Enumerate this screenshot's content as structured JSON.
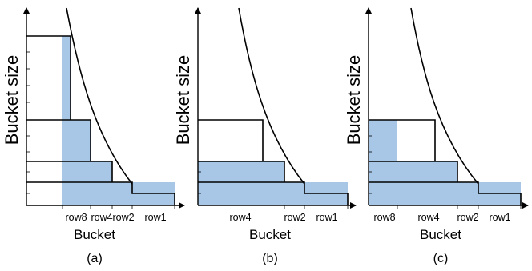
{
  "panels": [
    {
      "id": "a",
      "ylabel": "Bucket size",
      "xlabel": "Bucket",
      "caption": "(a)",
      "tick_labels": [
        "row8",
        "row4",
        "row2",
        "row1"
      ]
    },
    {
      "id": "b",
      "ylabel": "Bucket size",
      "xlabel": "Bucket",
      "caption": "(b)",
      "tick_labels": [
        "row4",
        "row2",
        "row1"
      ]
    },
    {
      "id": "c",
      "ylabel": "Bucket size",
      "xlabel": "Bucket",
      "caption": "(c)",
      "tick_labels": [
        "row8",
        "row4",
        "row2",
        "row1"
      ]
    }
  ],
  "colors": {
    "fill": "#a8c6e6",
    "line": "#000000"
  }
}
